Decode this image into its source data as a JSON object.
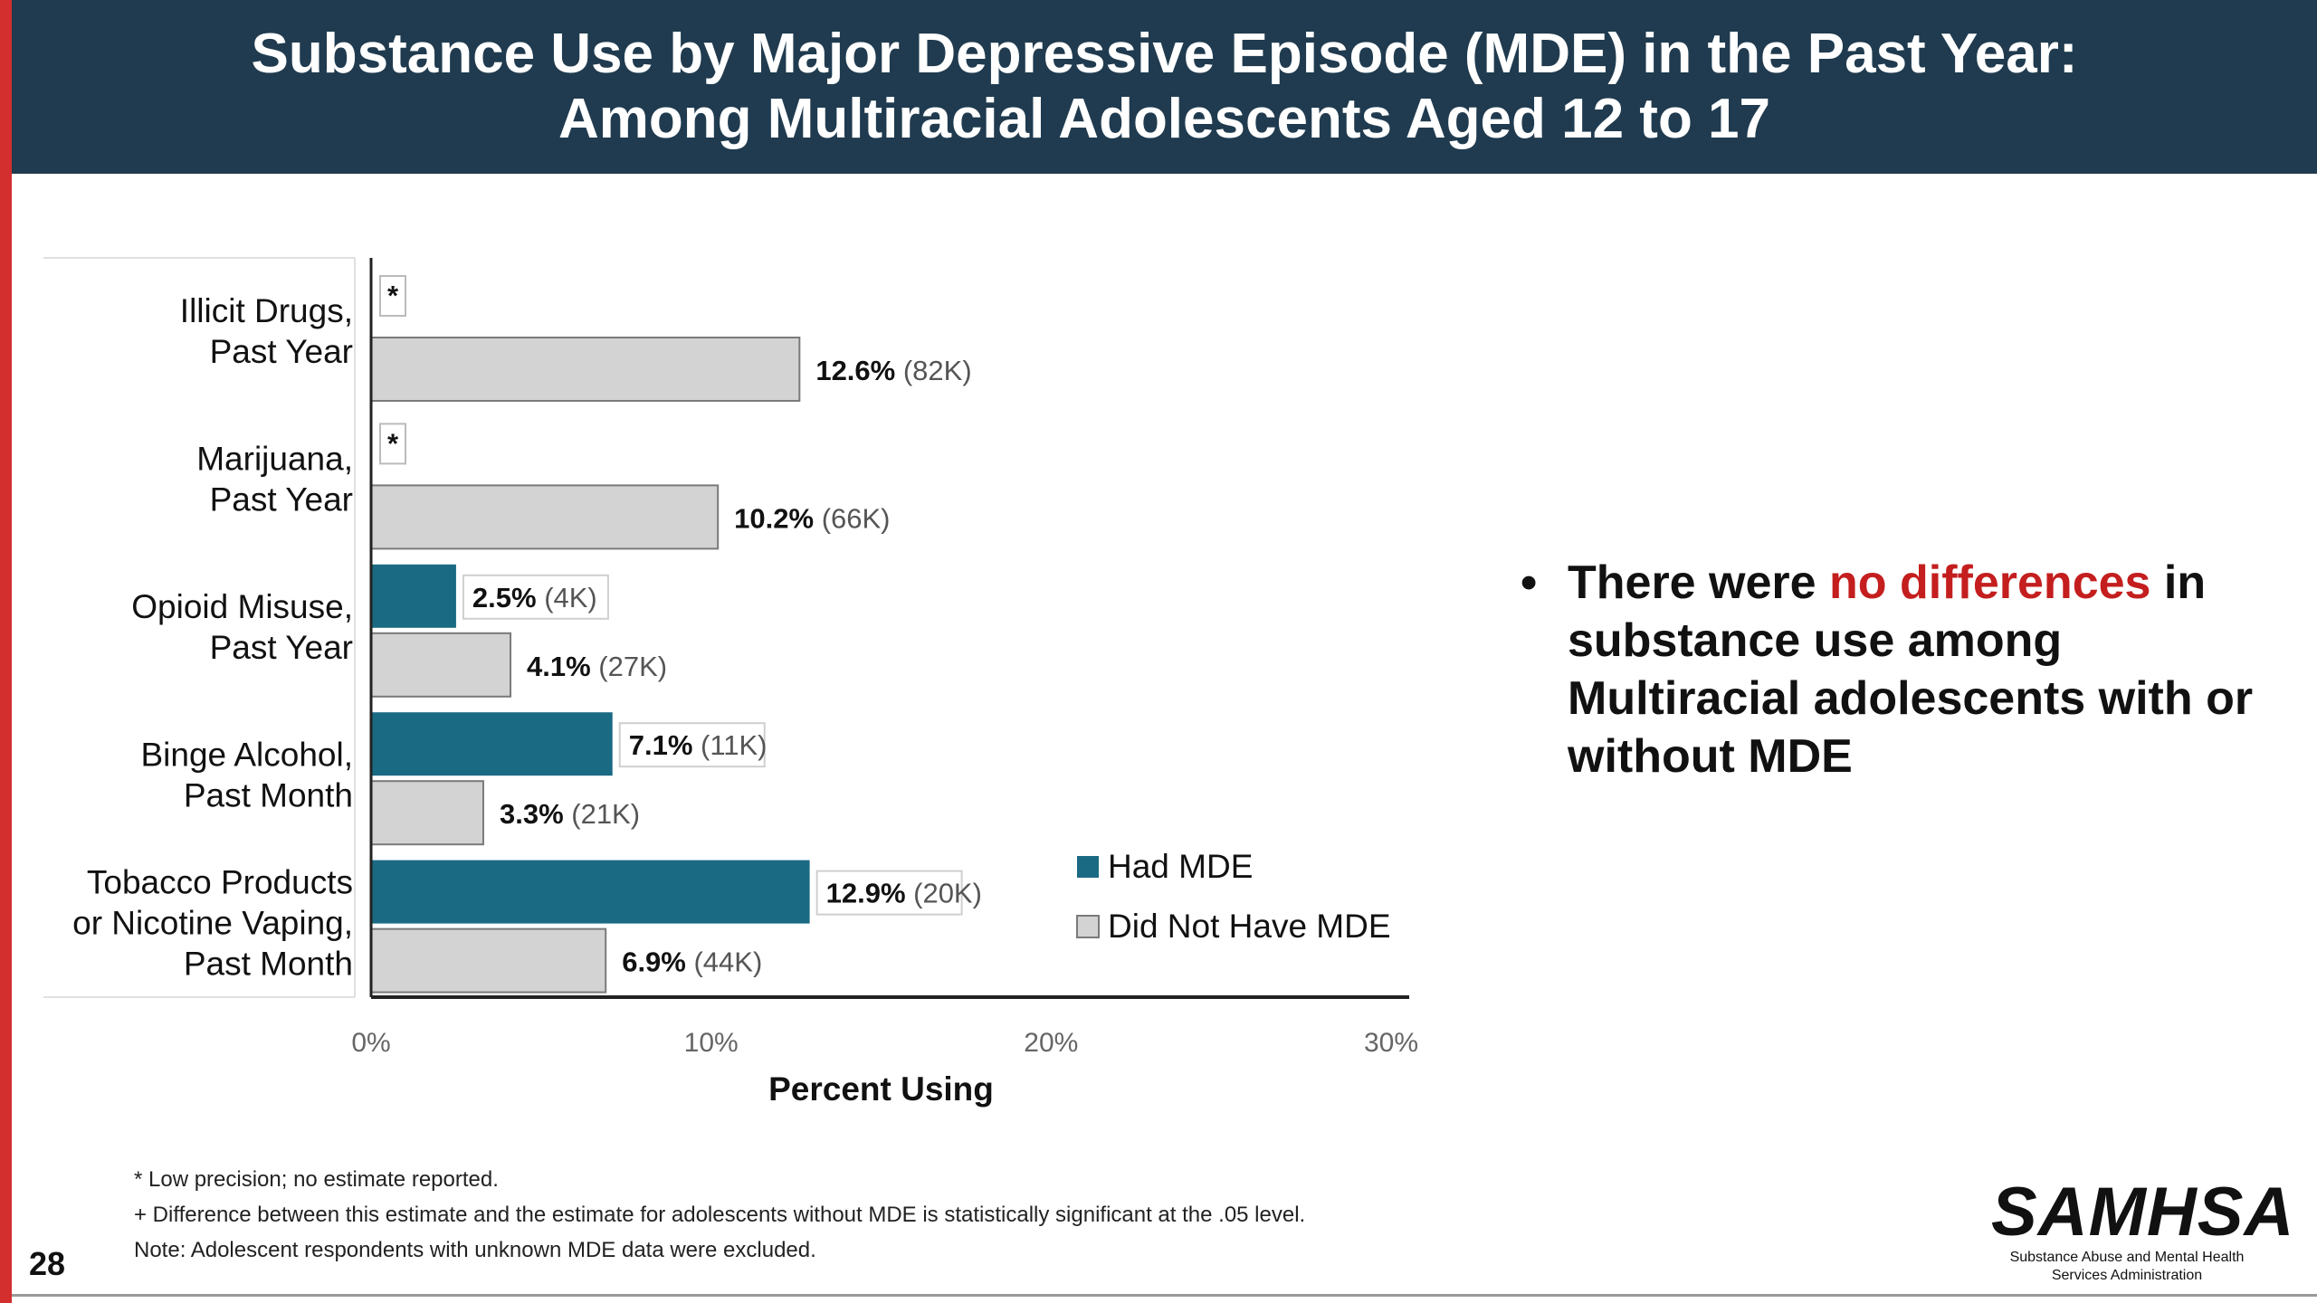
{
  "header": {
    "title_line1": "Substance Use by Major Depressive Episode (MDE) in the Past Year:",
    "title_line2": "Among Multiracial Adolescents Aged 12 to 17"
  },
  "colors": {
    "had_mde": "#1b6a84",
    "no_mde": "#d3d3d3",
    "header_bg": "#203b4f",
    "accent_stripe": "#d32f2f",
    "highlight": "#c41e1e"
  },
  "chart_data": {
    "type": "bar",
    "orientation": "horizontal",
    "categories": [
      [
        "Illicit Drugs,",
        "Past Year"
      ],
      [
        "Marijuana,",
        "Past Year"
      ],
      [
        "Opioid Misuse,",
        "Past Year"
      ],
      [
        "Binge Alcohol,",
        "Past Month"
      ],
      [
        "Tobacco Products",
        "or Nicotine Vaping,",
        "Past Month"
      ]
    ],
    "series": [
      {
        "name": "Had MDE",
        "values": [
          null,
          null,
          2.5,
          7.1,
          12.9
        ],
        "labels": [
          "*",
          "*",
          "2.5%",
          "7.1%",
          "12.9%"
        ],
        "counts": [
          "",
          "",
          "(4K)",
          "(11K)",
          "(20K)"
        ]
      },
      {
        "name": "Did Not Have MDE",
        "values": [
          12.6,
          10.2,
          4.1,
          3.3,
          6.9
        ],
        "labels": [
          "12.6%",
          "10.2%",
          "4.1%",
          "3.3%",
          "6.9%"
        ],
        "counts": [
          "(82K)",
          "(66K)",
          "(27K)",
          "(21K)",
          "(44K)"
        ]
      }
    ],
    "xlabel": "Percent Using",
    "xlim": [
      0,
      30
    ],
    "xticks": [
      "0%",
      "10%",
      "20%",
      "30%"
    ],
    "legend": "right"
  },
  "bullet": {
    "pre": "There were ",
    "highlight": "no differences",
    "post": " in substance use among Multiracial adolescents with or without MDE"
  },
  "footnotes": {
    "line1": "* Low precision; no estimate reported.",
    "line2": "+ Difference between this estimate and the estimate for adolescents without MDE is statistically significant at the .05 level.",
    "line3": "Note: Adolescent respondents with unknown MDE data were excluded."
  },
  "slide_number": "28",
  "logo": {
    "name": "SAMHSA",
    "subtitle1": "Substance Abuse and Mental Health",
    "subtitle2": "Services Administration"
  }
}
